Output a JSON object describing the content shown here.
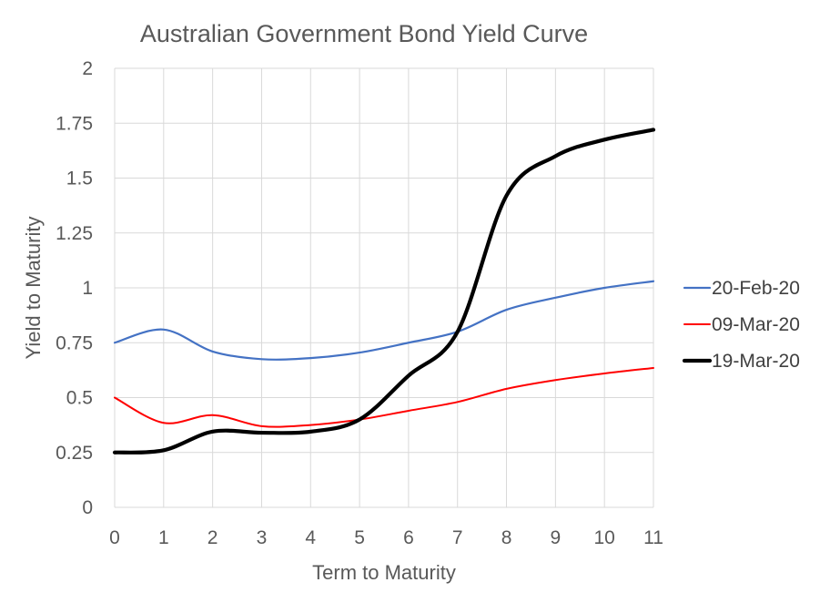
{
  "chart_data": {
    "type": "line",
    "title": "Australian Government Bond Yield Curve",
    "xlabel": "Term to Maturity",
    "ylabel": "Yield to Maturity",
    "xlim": [
      0,
      11
    ],
    "ylim": [
      0,
      2
    ],
    "x_ticks": [
      "0",
      "1",
      "2",
      "3",
      "4",
      "5",
      "6",
      "7",
      "8",
      "9",
      "10",
      "11"
    ],
    "y_ticks": [
      "0",
      "0.25",
      "0.5",
      "0.75",
      "1",
      "1.25",
      "1.5",
      "1.75",
      "2"
    ],
    "grid": true,
    "legend_position": "right",
    "series": [
      {
        "name": "20-Feb-20",
        "color": "#4472c4",
        "x": [
          0,
          1,
          2,
          3,
          4,
          5,
          6,
          7,
          8,
          9,
          10,
          11
        ],
        "values": [
          0.75,
          0.81,
          0.71,
          0.675,
          0.68,
          0.705,
          0.75,
          0.8,
          0.9,
          0.955,
          1.0,
          1.03
        ]
      },
      {
        "name": "09-Mar-20",
        "color": "#ff0000",
        "x": [
          0,
          1,
          2,
          3,
          4,
          5,
          6,
          7,
          8,
          9,
          10,
          11
        ],
        "values": [
          0.5,
          0.385,
          0.42,
          0.37,
          0.375,
          0.4,
          0.44,
          0.48,
          0.54,
          0.58,
          0.61,
          0.635
        ]
      },
      {
        "name": "19-Mar-20",
        "color": "#000000",
        "x": [
          0,
          1,
          2,
          3,
          4,
          5,
          6,
          7,
          8,
          9,
          10,
          11
        ],
        "values": [
          0.25,
          0.26,
          0.345,
          0.34,
          0.345,
          0.4,
          0.6,
          0.8,
          1.42,
          1.6,
          1.675,
          1.72
        ]
      }
    ]
  }
}
